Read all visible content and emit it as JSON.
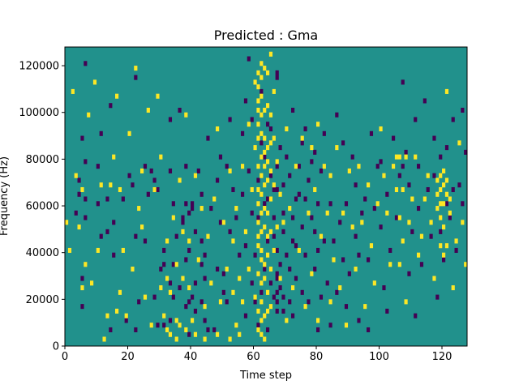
{
  "chart_data": {
    "type": "heatmap",
    "title": "Predicted : Gma",
    "xlabel": "Time step",
    "ylabel": "Frequency (Hz)",
    "xlim": [
      0,
      128
    ],
    "ylim": [
      0,
      128000
    ],
    "xticks": [
      0,
      20,
      40,
      60,
      80,
      100,
      120
    ],
    "yticks": [
      0,
      20000,
      40000,
      60000,
      80000,
      100000,
      120000
    ],
    "ytick_labels": [
      "0",
      "20000",
      "40000",
      "60000",
      "80000",
      "100000",
      "120000"
    ],
    "grid": false,
    "colormap": "viridis (3 levels)",
    "background_level": 0,
    "colors": {
      "low": "#440154",
      "mid": "#21918c",
      "high": "#fde725"
    },
    "n_time_steps": 128,
    "n_freq_bins": 64,
    "bin_height_hz": 2000,
    "cells_low": [
      [
        3,
        28
      ],
      [
        4,
        32
      ],
      [
        4,
        35
      ],
      [
        5,
        8
      ],
      [
        5,
        14
      ],
      [
        5,
        44
      ],
      [
        6,
        27
      ],
      [
        6,
        31
      ],
      [
        6,
        39
      ],
      [
        6,
        60
      ],
      [
        10,
        30
      ],
      [
        10,
        38
      ],
      [
        11,
        23
      ],
      [
        11,
        45
      ],
      [
        13,
        24
      ],
      [
        13,
        31
      ],
      [
        14,
        3
      ],
      [
        14,
        51
      ],
      [
        15,
        19
      ],
      [
        15,
        26
      ],
      [
        18,
        31
      ],
      [
        19,
        5
      ],
      [
        20,
        36
      ],
      [
        21,
        34
      ],
      [
        22,
        3
      ],
      [
        22,
        23
      ],
      [
        22,
        57
      ],
      [
        23,
        9
      ],
      [
        25,
        22
      ],
      [
        25,
        38
      ],
      [
        26,
        32
      ],
      [
        27,
        37
      ],
      [
        28,
        10
      ],
      [
        28,
        35
      ],
      [
        29,
        4
      ],
      [
        29,
        33
      ],
      [
        30,
        16
      ],
      [
        31,
        4
      ],
      [
        31,
        17
      ],
      [
        31,
        20
      ],
      [
        33,
        5
      ],
      [
        33,
        13
      ],
      [
        33,
        37
      ],
      [
        33,
        48
      ],
      [
        34,
        10
      ],
      [
        34,
        17
      ],
      [
        34,
        30
      ],
      [
        35,
        23
      ],
      [
        36,
        12
      ],
      [
        36,
        50
      ],
      [
        37,
        26
      ],
      [
        37,
        27
      ],
      [
        38,
        8
      ],
      [
        38,
        18
      ],
      [
        38,
        30
      ],
      [
        38,
        38
      ],
      [
        39,
        2
      ],
      [
        39,
        9
      ],
      [
        39,
        20
      ],
      [
        39,
        28
      ],
      [
        40,
        10
      ],
      [
        40,
        29
      ],
      [
        40,
        30
      ],
      [
        41,
        7
      ],
      [
        41,
        13
      ],
      [
        41,
        24
      ],
      [
        42,
        37
      ],
      [
        43,
        9
      ],
      [
        43,
        17
      ],
      [
        43,
        22
      ],
      [
        43,
        32
      ],
      [
        44,
        5
      ],
      [
        44,
        14
      ],
      [
        44,
        19
      ],
      [
        45,
        3
      ],
      [
        45,
        44
      ],
      [
        46,
        29
      ],
      [
        47,
        3
      ],
      [
        48,
        16
      ],
      [
        48,
        35
      ],
      [
        49,
        26
      ],
      [
        49,
        40
      ],
      [
        50,
        11
      ],
      [
        50,
        15
      ],
      [
        51,
        9
      ],
      [
        51,
        38
      ],
      [
        52,
        24
      ],
      [
        52,
        48
      ],
      [
        53,
        33
      ],
      [
        54,
        27
      ],
      [
        55,
        19
      ],
      [
        56,
        32
      ],
      [
        56,
        45
      ],
      [
        57,
        6
      ],
      [
        57,
        21
      ],
      [
        57,
        52
      ],
      [
        58,
        37
      ],
      [
        58,
        61
      ],
      [
        59,
        13
      ],
      [
        59,
        28
      ],
      [
        59,
        48
      ],
      [
        60,
        9
      ],
      [
        60,
        19
      ],
      [
        61,
        4
      ],
      [
        61,
        27
      ],
      [
        61,
        35
      ],
      [
        62,
        11
      ],
      [
        62,
        43
      ],
      [
        62,
        54
      ],
      [
        63,
        16
      ],
      [
        63,
        30
      ],
      [
        63,
        40
      ],
      [
        64,
        3
      ],
      [
        64,
        22
      ],
      [
        64,
        31
      ],
      [
        64,
        47
      ],
      [
        65,
        13
      ],
      [
        65,
        36
      ],
      [
        65,
        46
      ],
      [
        66,
        10
      ],
      [
        66,
        23
      ],
      [
        66,
        27
      ],
      [
        66,
        33
      ],
      [
        67,
        7
      ],
      [
        67,
        9
      ],
      [
        67,
        11
      ],
      [
        67,
        14
      ],
      [
        67,
        15
      ],
      [
        67,
        20
      ],
      [
        67,
        33
      ],
      [
        67,
        38
      ],
      [
        67,
        57
      ],
      [
        67,
        58
      ],
      [
        68,
        12
      ],
      [
        68,
        17
      ],
      [
        68,
        42
      ],
      [
        69,
        7
      ],
      [
        69,
        10
      ],
      [
        69,
        24
      ],
      [
        69,
        28
      ],
      [
        69,
        34
      ],
      [
        70,
        19
      ],
      [
        70,
        40
      ],
      [
        71,
        9
      ],
      [
        71,
        16
      ],
      [
        71,
        36
      ],
      [
        72,
        6
      ],
      [
        72,
        22
      ],
      [
        72,
        27
      ],
      [
        72,
        50
      ],
      [
        73,
        14
      ],
      [
        73,
        21
      ],
      [
        73,
        31
      ],
      [
        74,
        32
      ],
      [
        74,
        38
      ],
      [
        75,
        11
      ],
      [
        75,
        25
      ],
      [
        75,
        43
      ],
      [
        76,
        19
      ],
      [
        76,
        31
      ],
      [
        76,
        46
      ],
      [
        77,
        9
      ],
      [
        77,
        35
      ],
      [
        78,
        27
      ],
      [
        78,
        39
      ],
      [
        79,
        16
      ],
      [
        79,
        24
      ],
      [
        79,
        41
      ],
      [
        80,
        3
      ],
      [
        80,
        20
      ],
      [
        80,
        30
      ],
      [
        81,
        10
      ],
      [
        81,
        37
      ],
      [
        82,
        22
      ],
      [
        82,
        45
      ],
      [
        83,
        13
      ],
      [
        84,
        4
      ],
      [
        84,
        30
      ],
      [
        85,
        22
      ],
      [
        86,
        11
      ],
      [
        86,
        49
      ],
      [
        87,
        26
      ],
      [
        88,
        18
      ],
      [
        88,
        43
      ],
      [
        89,
        8
      ],
      [
        89,
        30
      ],
      [
        90,
        15
      ],
      [
        91,
        40
      ],
      [
        92,
        23
      ],
      [
        92,
        34
      ],
      [
        93,
        5
      ],
      [
        93,
        19
      ],
      [
        94,
        28
      ],
      [
        95,
        31
      ],
      [
        96,
        3
      ],
      [
        96,
        18
      ],
      [
        97,
        45
      ],
      [
        98,
        29
      ],
      [
        99,
        38
      ],
      [
        100,
        25
      ],
      [
        100,
        39
      ],
      [
        101,
        12
      ],
      [
        102,
        7
      ],
      [
        102,
        32
      ],
      [
        103,
        20
      ],
      [
        104,
        44
      ],
      [
        105,
        27
      ],
      [
        106,
        36
      ],
      [
        107,
        38
      ],
      [
        107,
        56
      ],
      [
        108,
        41
      ],
      [
        109,
        15
      ],
      [
        109,
        34
      ],
      [
        110,
        24
      ],
      [
        111,
        6
      ],
      [
        111,
        48
      ],
      [
        112,
        29
      ],
      [
        112,
        38
      ],
      [
        113,
        17
      ],
      [
        114,
        52
      ],
      [
        115,
        33
      ],
      [
        116,
        23
      ],
      [
        117,
        36
      ],
      [
        117,
        44
      ],
      [
        118,
        10
      ],
      [
        119,
        24
      ],
      [
        119,
        40
      ],
      [
        120,
        18
      ],
      [
        121,
        30
      ],
      [
        121,
        42
      ],
      [
        122,
        27
      ],
      [
        123,
        33
      ],
      [
        123,
        48
      ],
      [
        124,
        20
      ],
      [
        125,
        34
      ],
      [
        126,
        30
      ],
      [
        126,
        50
      ],
      [
        127,
        41
      ]
    ],
    "cells_high": [
      [
        0,
        26
      ],
      [
        1,
        20
      ],
      [
        2,
        54
      ],
      [
        3,
        36
      ],
      [
        4,
        25
      ],
      [
        5,
        12
      ],
      [
        5,
        33
      ],
      [
        6,
        17
      ],
      [
        7,
        49
      ],
      [
        8,
        13
      ],
      [
        9,
        56
      ],
      [
        10,
        20
      ],
      [
        11,
        34
      ],
      [
        12,
        1
      ],
      [
        13,
        6
      ],
      [
        14,
        34
      ],
      [
        15,
        40
      ],
      [
        16,
        7
      ],
      [
        16,
        53
      ],
      [
        17,
        11
      ],
      [
        17,
        33
      ],
      [
        18,
        20
      ],
      [
        19,
        6
      ],
      [
        20,
        45
      ],
      [
        21,
        16
      ],
      [
        22,
        59
      ],
      [
        23,
        29
      ],
      [
        24,
        25
      ],
      [
        24,
        37
      ],
      [
        25,
        10
      ],
      [
        26,
        50
      ],
      [
        27,
        4
      ],
      [
        28,
        33
      ],
      [
        29,
        53
      ],
      [
        30,
        12
      ],
      [
        30,
        40
      ],
      [
        31,
        6
      ],
      [
        32,
        3
      ],
      [
        32,
        14
      ],
      [
        32,
        22
      ],
      [
        33,
        2
      ],
      [
        33,
        11
      ],
      [
        34,
        27
      ],
      [
        35,
        1
      ],
      [
        35,
        5
      ],
      [
        35,
        17
      ],
      [
        36,
        4
      ],
      [
        36,
        35
      ],
      [
        37,
        14
      ],
      [
        37,
        24
      ],
      [
        38,
        3
      ],
      [
        38,
        49
      ],
      [
        39,
        12
      ],
      [
        39,
        22
      ],
      [
        40,
        5
      ],
      [
        41,
        2
      ],
      [
        41,
        36
      ],
      [
        42,
        18
      ],
      [
        43,
        29
      ],
      [
        44,
        1
      ],
      [
        44,
        8
      ],
      [
        45,
        23
      ],
      [
        46,
        13
      ],
      [
        47,
        31
      ],
      [
        48,
        2
      ],
      [
        48,
        46
      ],
      [
        49,
        9
      ],
      [
        50,
        26
      ],
      [
        51,
        16
      ],
      [
        52,
        1
      ],
      [
        52,
        37
      ],
      [
        53,
        11
      ],
      [
        53,
        22
      ],
      [
        54,
        4
      ],
      [
        54,
        29
      ],
      [
        55,
        2
      ],
      [
        55,
        14
      ],
      [
        56,
        9
      ],
      [
        56,
        38
      ],
      [
        57,
        24
      ],
      [
        58,
        16
      ],
      [
        58,
        47
      ],
      [
        59,
        33
      ],
      [
        60,
        10
      ],
      [
        60,
        42
      ],
      [
        60,
        56
      ],
      [
        61,
        3
      ],
      [
        61,
        7
      ],
      [
        61,
        15
      ],
      [
        61,
        21
      ],
      [
        61,
        23
      ],
      [
        61,
        26
      ],
      [
        61,
        30
      ],
      [
        61,
        33
      ],
      [
        61,
        38
      ],
      [
        61,
        44
      ],
      [
        61,
        47
      ],
      [
        61,
        50
      ],
      [
        61,
        52
      ],
      [
        61,
        55
      ],
      [
        61,
        58
      ],
      [
        62,
        2
      ],
      [
        62,
        5
      ],
      [
        62,
        9
      ],
      [
        62,
        13
      ],
      [
        62,
        18
      ],
      [
        62,
        20
      ],
      [
        62,
        24
      ],
      [
        62,
        28
      ],
      [
        62,
        32
      ],
      [
        62,
        36
      ],
      [
        62,
        40
      ],
      [
        62,
        45
      ],
      [
        62,
        49
      ],
      [
        62,
        53
      ],
      [
        62,
        57
      ],
      [
        62,
        60
      ],
      [
        63,
        1
      ],
      [
        63,
        6
      ],
      [
        63,
        14
      ],
      [
        63,
        17
      ],
      [
        63,
        25
      ],
      [
        63,
        29
      ],
      [
        63,
        34
      ],
      [
        63,
        38
      ],
      [
        63,
        41
      ],
      [
        63,
        44
      ],
      [
        63,
        50
      ],
      [
        63,
        59
      ],
      [
        64,
        7
      ],
      [
        64,
        11
      ],
      [
        64,
        19
      ],
      [
        64,
        23
      ],
      [
        64,
        28
      ],
      [
        64,
        35
      ],
      [
        64,
        39
      ],
      [
        64,
        42
      ],
      [
        64,
        51
      ],
      [
        64,
        58
      ],
      [
        65,
        8
      ],
      [
        65,
        16
      ],
      [
        65,
        24
      ],
      [
        65,
        31
      ],
      [
        65,
        37
      ],
      [
        65,
        43
      ],
      [
        65,
        49
      ],
      [
        65,
        62
      ],
      [
        66,
        20
      ],
      [
        66,
        34
      ],
      [
        66,
        44
      ],
      [
        66,
        54
      ],
      [
        67,
        25
      ],
      [
        67,
        39
      ],
      [
        68,
        14
      ],
      [
        68,
        32
      ],
      [
        69,
        26
      ],
      [
        70,
        5
      ],
      [
        70,
        46
      ],
      [
        71,
        29
      ],
      [
        72,
        12
      ],
      [
        73,
        38
      ],
      [
        74,
        20
      ],
      [
        75,
        44
      ],
      [
        76,
        8
      ],
      [
        77,
        28
      ],
      [
        78,
        15
      ],
      [
        78,
        42
      ],
      [
        79,
        33
      ],
      [
        80,
        5
      ],
      [
        80,
        47
      ],
      [
        81,
        23
      ],
      [
        82,
        38
      ],
      [
        83,
        28
      ],
      [
        84,
        9
      ],
      [
        84,
        36
      ],
      [
        85,
        18
      ],
      [
        86,
        42
      ],
      [
        87,
        12
      ],
      [
        88,
        28
      ],
      [
        89,
        4
      ],
      [
        90,
        37
      ],
      [
        91,
        25
      ],
      [
        92,
        16
      ],
      [
        93,
        38
      ],
      [
        94,
        26
      ],
      [
        95,
        8
      ],
      [
        96,
        34
      ],
      [
        97,
        21
      ],
      [
        98,
        13
      ],
      [
        99,
        30
      ],
      [
        100,
        46
      ],
      [
        101,
        36
      ],
      [
        102,
        28
      ],
      [
        103,
        17
      ],
      [
        104,
        38
      ],
      [
        105,
        33
      ],
      [
        105,
        40
      ],
      [
        106,
        17
      ],
      [
        106,
        27
      ],
      [
        106,
        40
      ],
      [
        107,
        22
      ],
      [
        107,
        33
      ],
      [
        108,
        9
      ],
      [
        108,
        40
      ],
      [
        109,
        26
      ],
      [
        110,
        31
      ],
      [
        111,
        40
      ],
      [
        112,
        19
      ],
      [
        113,
        23
      ],
      [
        114,
        31
      ],
      [
        115,
        36
      ],
      [
        116,
        26
      ],
      [
        117,
        14
      ],
      [
        118,
        29
      ],
      [
        118,
        32
      ],
      [
        118,
        35
      ],
      [
        119,
        21
      ],
      [
        119,
        27
      ],
      [
        119,
        30
      ],
      [
        119,
        33
      ],
      [
        119,
        36
      ],
      [
        120,
        19
      ],
      [
        120,
        25
      ],
      [
        120,
        30
      ],
      [
        120,
        34
      ],
      [
        120,
        37
      ],
      [
        121,
        21
      ],
      [
        121,
        32
      ],
      [
        121,
        35
      ],
      [
        121,
        54
      ],
      [
        122,
        28
      ],
      [
        122,
        31
      ],
      [
        123,
        12
      ],
      [
        124,
        22
      ],
      [
        125,
        43
      ],
      [
        126,
        26
      ],
      [
        127,
        17
      ]
    ]
  }
}
